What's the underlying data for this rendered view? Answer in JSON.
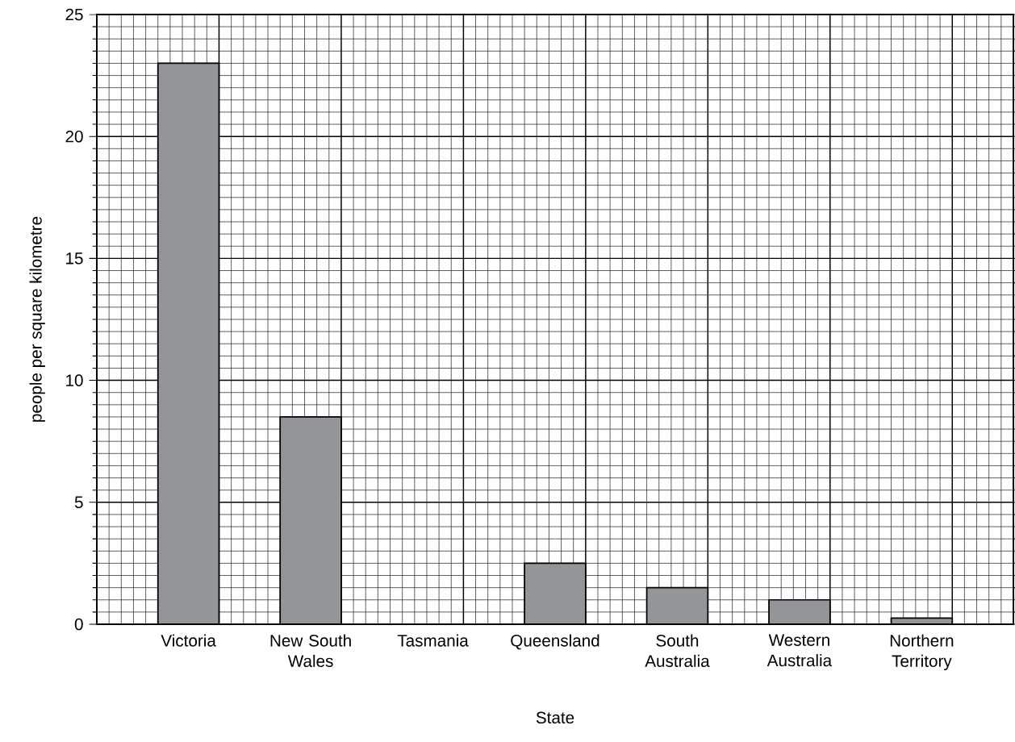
{
  "chart_data": {
    "type": "bar",
    "xlabel": "State",
    "ylabel": "people per square kilometre",
    "categories": [
      "Victoria",
      "New South Wales",
      "Tasmania",
      "Queensland",
      "South Australia",
      "Western Australia",
      "Northern Territory"
    ],
    "values": [
      23,
      8.5,
      null,
      2.5,
      1.5,
      1,
      0.25
    ],
    "color": "#939598",
    "ylim": [
      0,
      25
    ],
    "yticks": [
      0,
      5,
      10,
      15,
      20,
      25
    ],
    "grid": true
  }
}
